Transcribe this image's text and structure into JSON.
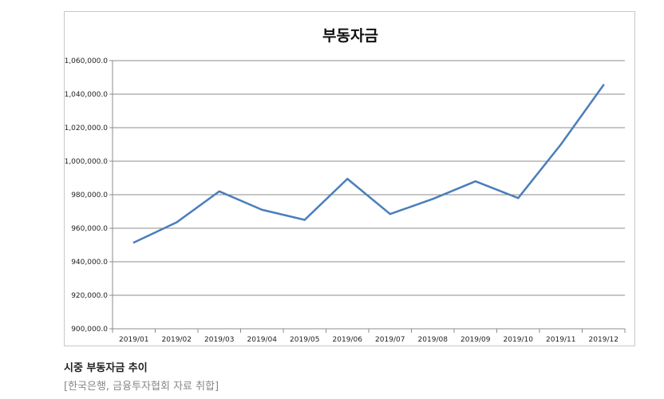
{
  "chart_data": {
    "type": "line",
    "title": "부동자금",
    "categories": [
      "2019/01",
      "2019/02",
      "2019/03",
      "2019/04",
      "2019/05",
      "2019/06",
      "2019/07",
      "2019/08",
      "2019/09",
      "2019/10",
      "2019/11",
      "2019/12"
    ],
    "series": [
      {
        "values": [
          951500,
          963500,
          982000,
          971000,
          965000,
          989500,
          968500,
          977500,
          988000,
          978000,
          1010000,
          1045500
        ],
        "color": "#4a7ebb"
      }
    ],
    "yticks": [
      "900,000.0",
      "920,000.0",
      "940,000.0",
      "960,000.0",
      "980,000.0",
      "1,000,000.0",
      "1,020,000.0",
      "1,040,000.0",
      "1,060,000.0"
    ],
    "ylim": [
      900000,
      1060000
    ],
    "grid": true,
    "legend": "none"
  },
  "caption": {
    "title": "시중 부동자금 추이",
    "source": "[한국은행, 금융투자협회 자료 취합]"
  }
}
